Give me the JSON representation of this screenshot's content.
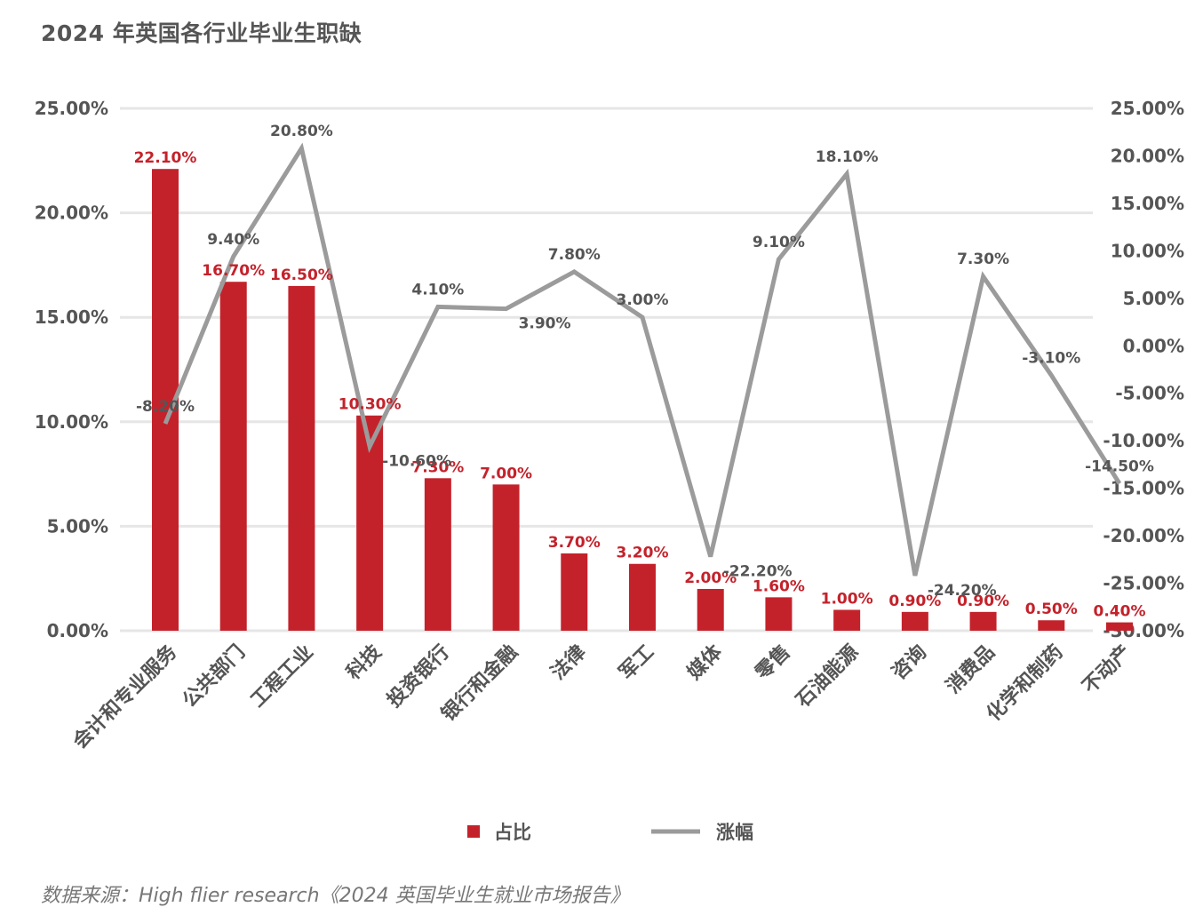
{
  "title": "2024 年英国各行业毕业生职缺",
  "source": "数据来源：High flier research《2024 英国毕业生就业市场报告》",
  "colors": {
    "bar": "#c4222b",
    "line": "#9b9b9b",
    "grid": "#e6e6e6",
    "axis_text": "#555555",
    "bar_label": "#c4222b",
    "line_label": "#555555"
  },
  "legend": [
    {
      "name": "占比",
      "kind": "bar"
    },
    {
      "name": "涨幅",
      "kind": "line"
    }
  ],
  "chart_data": {
    "type": "bar",
    "title": "2024 年英国各行业毕业生职缺",
    "categories": [
      "会计和专业服务",
      "公共部门",
      "工程工业",
      "科技",
      "投资银行",
      "银行和金融",
      "法律",
      "军工",
      "媒体",
      "零售",
      "石油能源",
      "咨询",
      "消费品",
      "化学和制药",
      "不动产"
    ],
    "series": [
      {
        "name": "占比",
        "type": "bar",
        "axis": "left",
        "values": [
          22.1,
          16.7,
          16.5,
          10.3,
          7.3,
          7.0,
          3.7,
          3.2,
          2.0,
          1.6,
          1.0,
          0.9,
          0.9,
          0.5,
          0.4
        ],
        "labels": [
          "22.10%",
          "16.70%",
          "16.50%",
          "10.30%",
          "7.30%",
          "7.00%",
          "3.70%",
          "3.20%",
          "2.00%",
          "1.60%",
          "1.00%",
          "0.90%",
          "0.90%",
          "0.50%",
          "0.40%"
        ]
      },
      {
        "name": "涨幅",
        "type": "line",
        "axis": "right",
        "values": [
          -8.2,
          9.4,
          20.8,
          -10.6,
          4.1,
          3.9,
          7.8,
          3.0,
          -22.2,
          9.1,
          18.1,
          -24.2,
          7.3,
          -3.1,
          -14.5
        ],
        "labels": [
          "-8.20%",
          "9.40%",
          "20.80%",
          "-10.60%",
          "4.10%",
          "3.90%",
          "7.80%",
          "3.00%",
          "-22.20%",
          "9.10%",
          "18.10%",
          "-24.20%",
          "7.30%",
          "-3.10%",
          "-14.50%"
        ]
      }
    ],
    "y_left": {
      "min": 0,
      "max": 25,
      "ticks": [
        "0.00%",
        "5.00%",
        "10.00%",
        "15.00%",
        "20.00%",
        "25.00%"
      ]
    },
    "y_right": {
      "min": -30,
      "max": 25,
      "ticks": [
        "-30.00%",
        "-25.00%",
        "-20.00%",
        "-15.00%",
        "-10.00%",
        "-5.00%",
        "0.00%",
        "5.00%",
        "10.00%",
        "15.00%",
        "20.00%",
        "25.00%"
      ]
    },
    "legend_position": "bottom",
    "grid": true
  }
}
